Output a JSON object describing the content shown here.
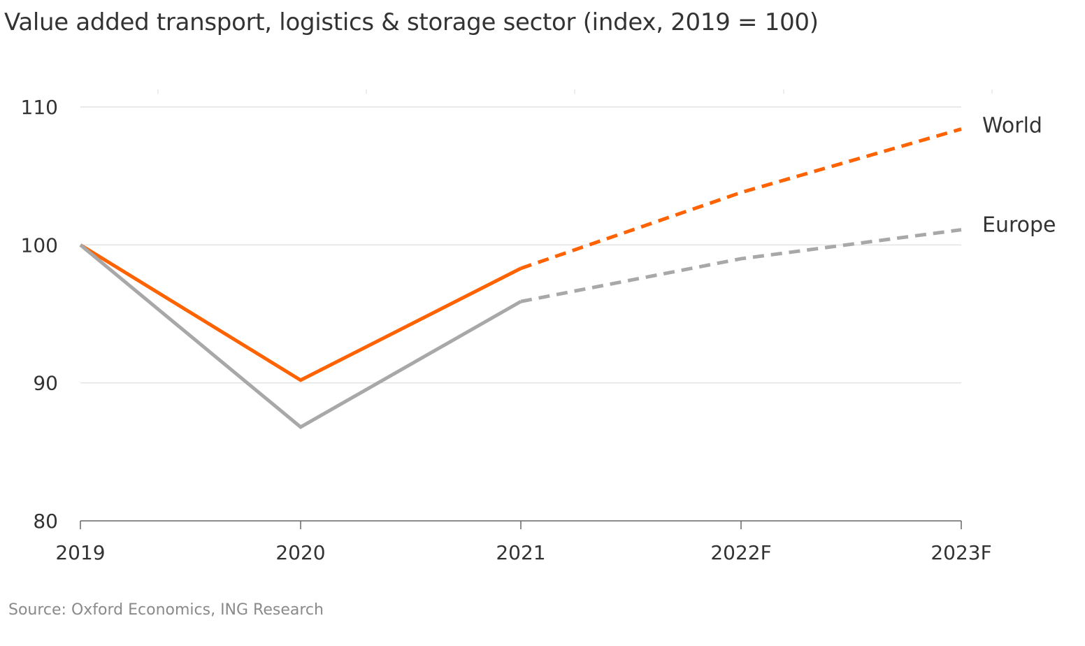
{
  "title": "Value added transport, logistics & storage sector (index, 2019 = 100)",
  "source": "Source: Oxford Economics, ING Research",
  "chart_data": {
    "type": "line",
    "title": "Value added transport, logistics & storage sector (index, 2019 = 100)",
    "categories": [
      "2019",
      "2020",
      "2021",
      "2022F",
      "2023F"
    ],
    "forecast_from_index": 2,
    "ylim": [
      80,
      110
    ],
    "yticks": [
      80,
      90,
      100,
      110
    ],
    "grid": true,
    "legend": "direct labels at line ends",
    "series": [
      {
        "name": "World",
        "color": "#ff6200",
        "values": [
          100,
          90.2,
          98.3,
          103.8,
          108.4
        ]
      },
      {
        "name": "Europe",
        "color": "#a8a8a8",
        "values": [
          100,
          86.8,
          95.9,
          99.0,
          101.1
        ]
      }
    ]
  }
}
